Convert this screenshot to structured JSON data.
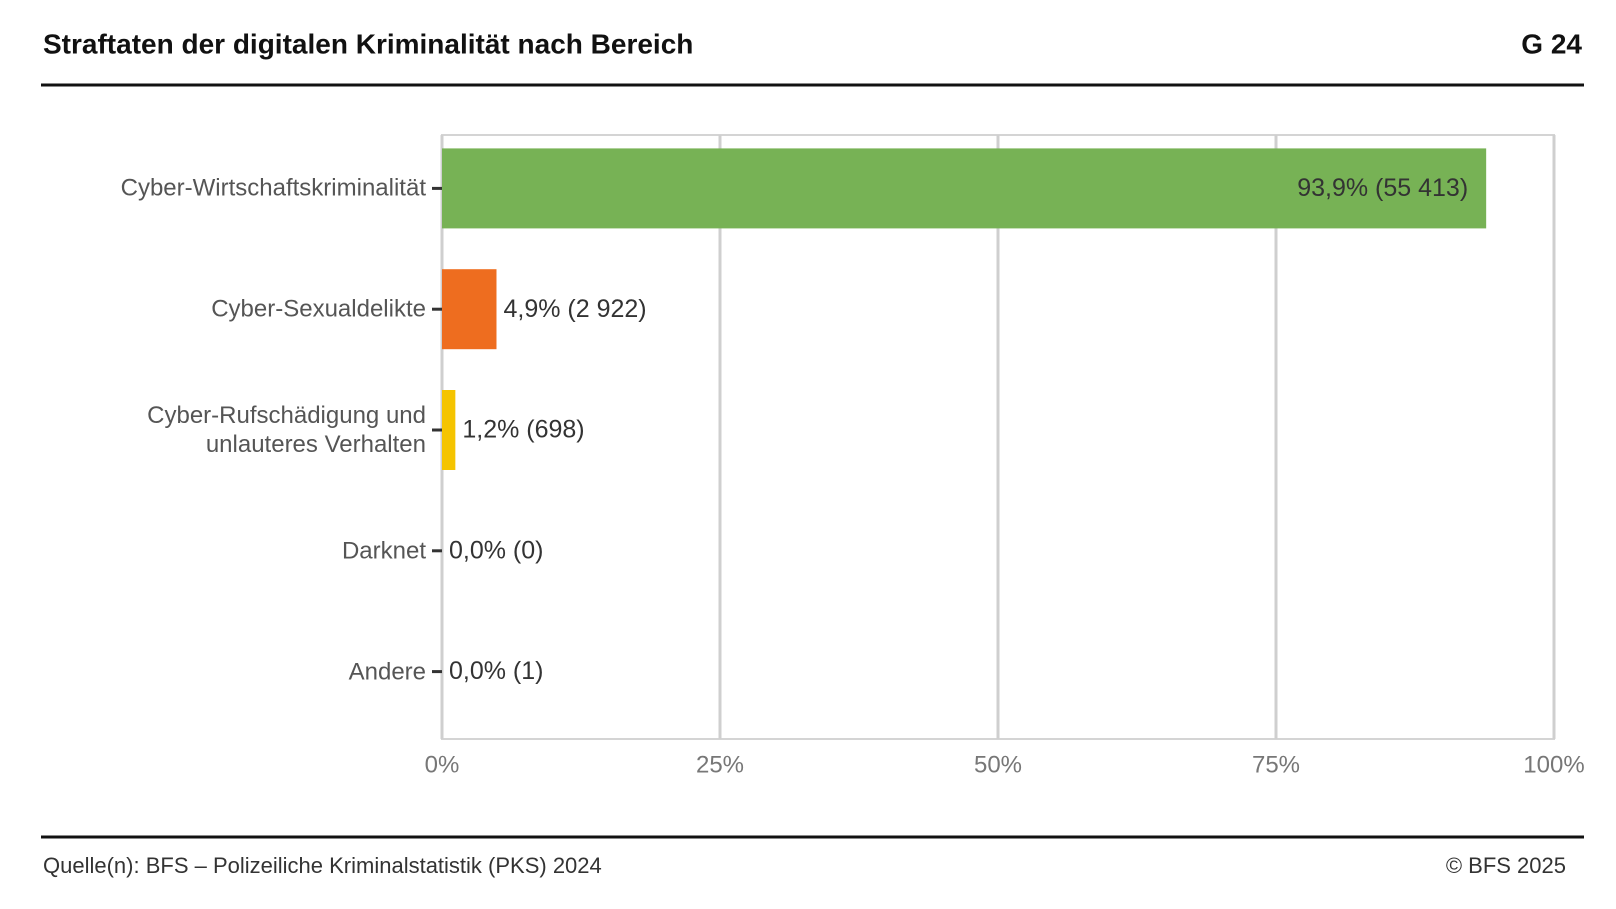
{
  "chart_data": {
    "type": "hbar",
    "title": "Straftaten der digitalen Kriminalität nach Bereich",
    "chart_id": "G 24",
    "source": "Quelle(n): BFS – Polizeiliche Kriminalstatistik (PKS) 2024",
    "copyright": "© BFS 2025",
    "categories": [
      "Cyber-Wirtschaftskriminalität",
      "Cyber-Sexualdelikte",
      "Cyber-Rufschädigung und unlauteres Verhalten",
      "Darknet",
      "Andere"
    ],
    "values": [
      93.9,
      4.9,
      1.2,
      0.0,
      0.0
    ],
    "value_labels": [
      "93,9% (55 413)",
      "4,9% (2 922)",
      "1,2% (698)",
      "0,0% (0)",
      "0,0% (1)"
    ],
    "colors": [
      "#77b255",
      "#ee6d1f",
      "#f5c400",
      "#3d7ab8",
      "#8c8c8c"
    ],
    "xlim": [
      0,
      100
    ],
    "xticks": [
      {
        "value": 0,
        "label": "0%"
      },
      {
        "value": 25,
        "label": "25%"
      },
      {
        "value": 50,
        "label": "50%"
      },
      {
        "value": 75,
        "label": "75%"
      },
      {
        "value": 100,
        "label": "100%"
      }
    ],
    "grid": true
  }
}
